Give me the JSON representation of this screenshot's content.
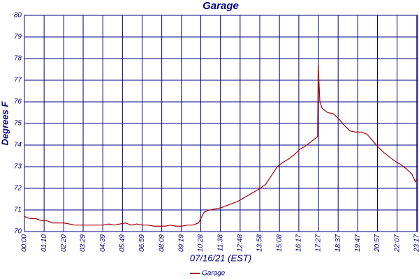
{
  "chart_data": {
    "type": "line",
    "title": "Garage",
    "xlabel": "07/16/21 (EST)",
    "ylabel": "Degrees F",
    "x": [
      0,
      20,
      40,
      60,
      80,
      100,
      120,
      140,
      160,
      180,
      200,
      220,
      240,
      260,
      280,
      300,
      320,
      340,
      360,
      380,
      400,
      420,
      440,
      460,
      480,
      500,
      520,
      540,
      560,
      580,
      600,
      620,
      640,
      660,
      680,
      700,
      720,
      740,
      760,
      780,
      800,
      820,
      840,
      860,
      880,
      900,
      920,
      940,
      960,
      980,
      1000,
      1020,
      1040,
      1044,
      1046,
      1052,
      1060,
      1080,
      1100,
      1120,
      1140,
      1160,
      1180,
      1200,
      1220,
      1240,
      1260,
      1280,
      1300,
      1320,
      1340,
      1360,
      1380,
      1392,
      1400
    ],
    "series": [
      {
        "name": "Garage",
        "color": "#aa0000",
        "values": [
          70.7,
          70.6,
          70.6,
          70.5,
          70.5,
          70.4,
          70.4,
          70.4,
          70.35,
          70.3,
          70.3,
          70.3,
          70.3,
          70.3,
          70.3,
          70.35,
          70.3,
          70.35,
          70.4,
          70.3,
          70.35,
          70.3,
          70.3,
          70.25,
          70.25,
          70.25,
          70.3,
          70.25,
          70.25,
          70.3,
          70.3,
          70.4,
          70.9,
          71.0,
          71.05,
          71.1,
          71.2,
          71.3,
          71.4,
          71.55,
          71.7,
          71.85,
          72.0,
          72.2,
          72.6,
          73.0,
          73.2,
          73.35,
          73.55,
          73.8,
          73.95,
          74.15,
          74.35,
          74.4,
          77.7,
          76.0,
          75.7,
          75.5,
          75.45,
          75.2,
          74.9,
          74.65,
          74.6,
          74.6,
          74.5,
          74.2,
          73.9,
          73.65,
          73.45,
          73.25,
          73.1,
          72.9,
          72.65,
          72.3,
          72.5
        ]
      }
    ],
    "xlim": [
      0,
      1400
    ],
    "xticks": [
      {
        "value": 0,
        "label": "00:00"
      },
      {
        "value": 70,
        "label": "01:10"
      },
      {
        "value": 140,
        "label": "02:20"
      },
      {
        "value": 209,
        "label": "03:29"
      },
      {
        "value": 279,
        "label": "04:39"
      },
      {
        "value": 349,
        "label": "05:49"
      },
      {
        "value": 419,
        "label": "06:59"
      },
      {
        "value": 489,
        "label": "08:09"
      },
      {
        "value": 559,
        "label": "09:19"
      },
      {
        "value": 628,
        "label": "10:28"
      },
      {
        "value": 698,
        "label": "11:38"
      },
      {
        "value": 768,
        "label": "12:48"
      },
      {
        "value": 838,
        "label": "13:58"
      },
      {
        "value": 908,
        "label": "15:08"
      },
      {
        "value": 977,
        "label": "16:17"
      },
      {
        "value": 1047,
        "label": "17:27"
      },
      {
        "value": 1117,
        "label": "18:37"
      },
      {
        "value": 1187,
        "label": "19:47"
      },
      {
        "value": 1257,
        "label": "20:57"
      },
      {
        "value": 1327,
        "label": "22:07"
      },
      {
        "value": 1397,
        "label": "23:17"
      }
    ],
    "ylim": [
      70,
      80
    ],
    "yticks": [
      70,
      71,
      72,
      73,
      74,
      75,
      76,
      77,
      78,
      79,
      80
    ],
    "grid": true,
    "legend": "bottom"
  }
}
